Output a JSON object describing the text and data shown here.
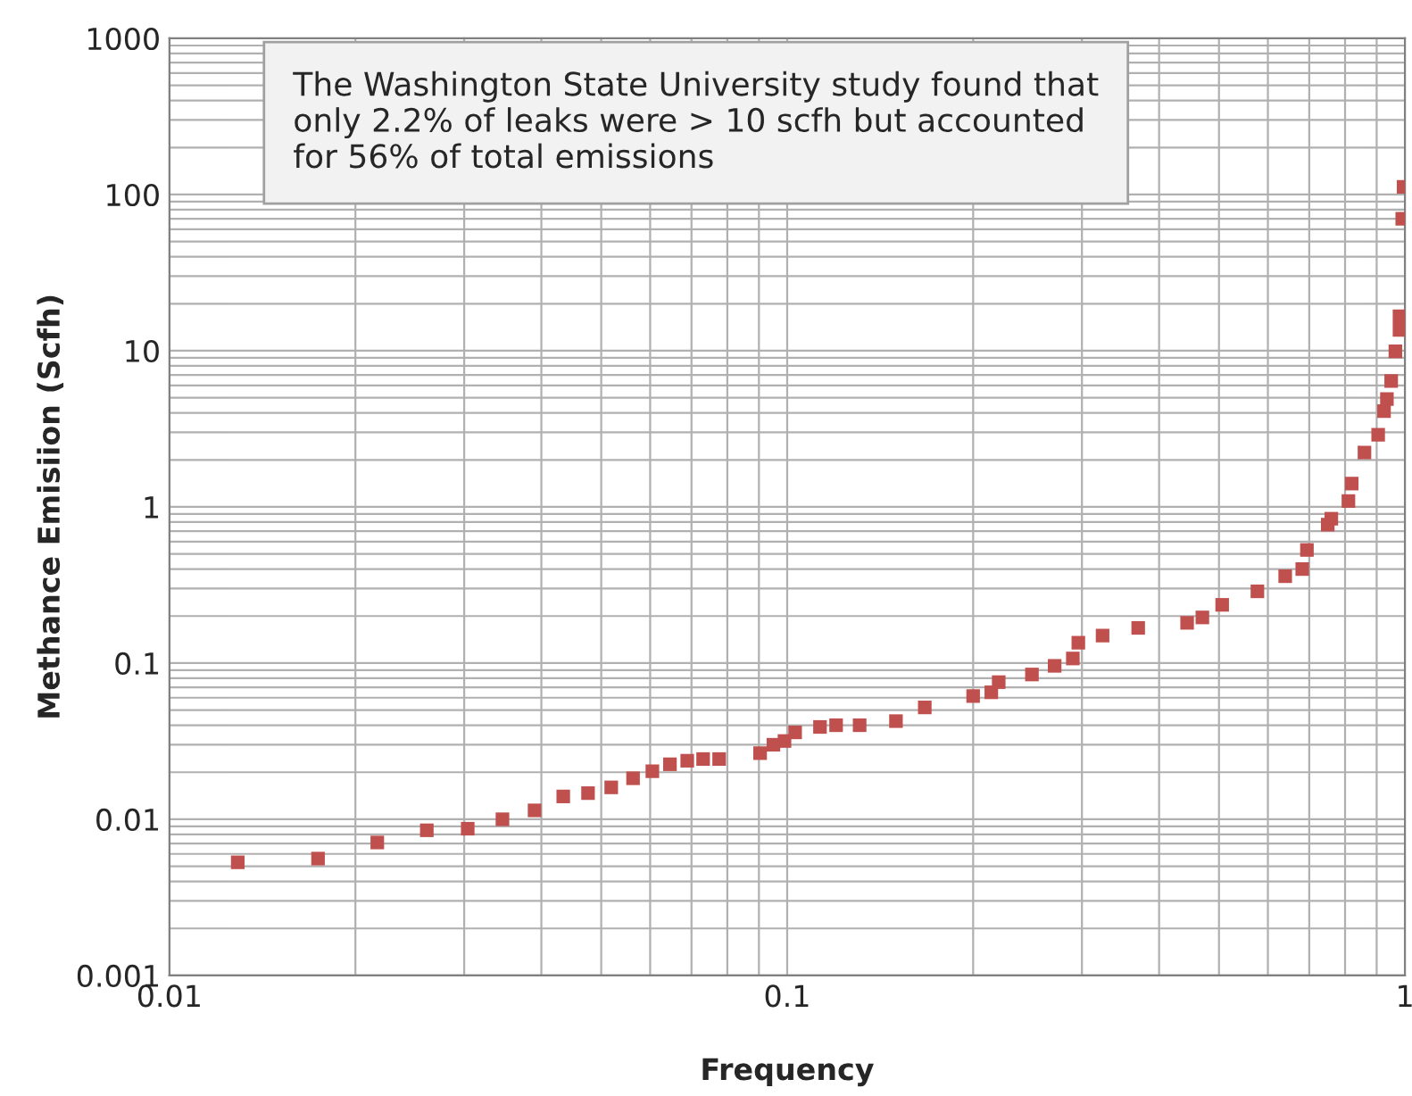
{
  "chart_data": {
    "type": "scatter",
    "xlabel": "Frequency",
    "ylabel": "Methance Emisiion (Scfh)",
    "annotations": [
      "The Washington State University study found that only 2.2% of leaks were > 10 scfh but accounted for 56% of total emissions"
    ],
    "log": "xy",
    "grid": true,
    "marker": "square",
    "xlim": [
      0.01,
      1
    ],
    "ylim": [
      0.001,
      1000
    ],
    "xticks": [
      0.01,
      0.1,
      1
    ],
    "yticks": [
      0.001,
      0.01,
      0.1,
      1,
      10,
      100,
      1000
    ],
    "series": [
      {
        "color": "#c0504d",
        "x": [
          0.0129,
          0.0174,
          0.0217,
          0.0261,
          0.0304,
          0.0346,
          0.039,
          0.0434,
          0.0476,
          0.0519,
          0.0563,
          0.0605,
          0.0646,
          0.0689,
          0.0731,
          0.0776,
          0.0904,
          0.095,
          0.099,
          0.103,
          0.113,
          0.12,
          0.131,
          0.15,
          0.167,
          0.2,
          0.214,
          0.22,
          0.249,
          0.271,
          0.29,
          0.296,
          0.324,
          0.37,
          0.444,
          0.47,
          0.506,
          0.577,
          0.64,
          0.682,
          0.694,
          0.75,
          0.76,
          0.81,
          0.82,
          0.86,
          0.905,
          0.925,
          0.935,
          0.95,
          0.965,
          0.98,
          0.98,
          0.99,
          0.995
        ],
        "values": [
          0.0053,
          0.0056,
          0.0071,
          0.0085,
          0.0087,
          0.01,
          0.0114,
          0.014,
          0.0147,
          0.016,
          0.0183,
          0.0203,
          0.0225,
          0.0237,
          0.0243,
          0.0243,
          0.0265,
          0.03,
          0.0317,
          0.036,
          0.039,
          0.04,
          0.04,
          0.0425,
          0.052,
          0.0615,
          0.065,
          0.0755,
          0.0845,
          0.096,
          0.107,
          0.135,
          0.15,
          0.168,
          0.181,
          0.196,
          0.236,
          0.288,
          0.36,
          0.4,
          0.53,
          0.77,
          0.84,
          1.09,
          1.41,
          2.23,
          2.9,
          4.1,
          4.9,
          6.4,
          9.9,
          13.6,
          16.6,
          70,
          112
        ]
      }
    ]
  }
}
